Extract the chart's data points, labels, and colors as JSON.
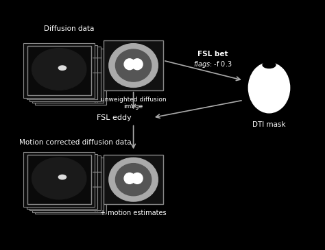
{
  "bg_color": "#000000",
  "text_color": "#ffffff",
  "title": "Diffusion data",
  "unweighted_label": "unweighted diffusion\nimage",
  "fsl_eddy_label": "FSL eddy",
  "motion_label": "Motion corrected diffusion data",
  "motion_estimates_label": "+ motion estimates",
  "fsl_bet_label": "FSL bet\nflags: -f 0.3",
  "dti_mask_label": "DTI mask",
  "stack_color": "#555555",
  "box_color": "#888888",
  "arrow_color": "#cccccc",
  "brain_dark_color": "#333333",
  "brain_light_color": "#cccccc",
  "brain_white_color": "#ffffff"
}
